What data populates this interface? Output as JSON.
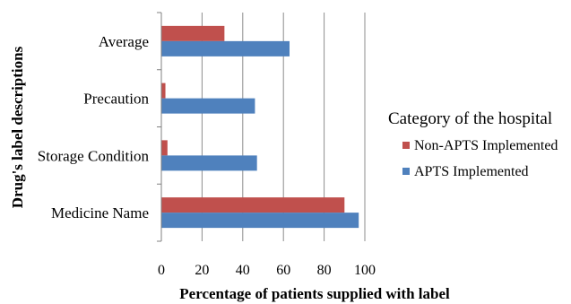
{
  "chart_data": {
    "type": "bar",
    "orientation": "horizontal",
    "categories": [
      "Medicine Name",
      "Storage Condition",
      "Precaution",
      "Average"
    ],
    "series": [
      {
        "name": "APTS Implemented",
        "values": [
          97,
          47,
          46,
          63
        ],
        "color": "#4f81bd"
      },
      {
        "name": "Non-APTS Implemented",
        "values": [
          90,
          3,
          2,
          31
        ],
        "color": "#c0504d"
      }
    ],
    "xlabel": "Percentage of patients supplied with label",
    "ylabel": "Drug's label descriptions",
    "xlim": [
      0,
      100
    ],
    "xticks": [
      "0",
      "20",
      "40",
      "60",
      "80",
      "100"
    ],
    "grid": "vertical",
    "legend": {
      "title": "Category of the hospital",
      "position": "right"
    }
  }
}
